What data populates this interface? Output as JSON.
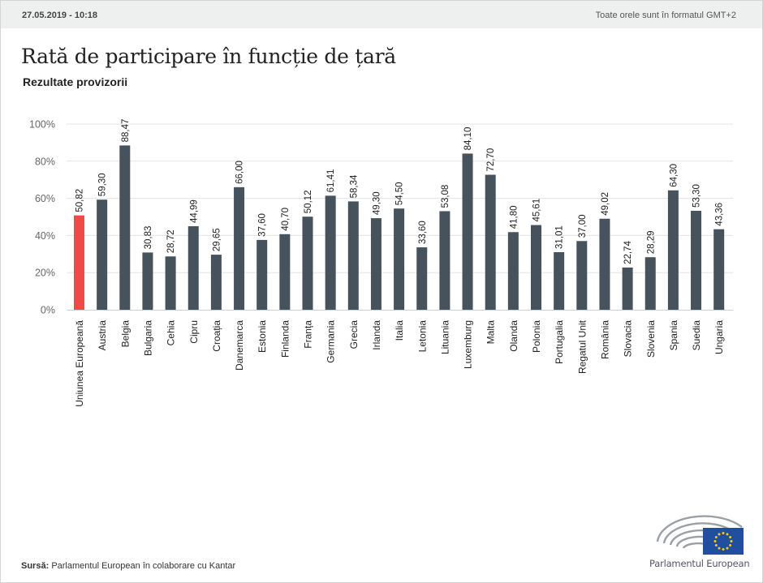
{
  "header": {
    "timestamp": "27.05.2019 - 10:18",
    "timezone_note": "Toate orele sunt în formatul GMT+2"
  },
  "footer": {
    "source_label": "Sursă:",
    "source_text": "Parlamentul European în colaborare cu Kantar",
    "logo_text": "Parlamentul European"
  },
  "colors": {
    "highlight": "#f04a47",
    "bar": "#46525c",
    "grid": "#e3e3e3",
    "axis_text": "#666666",
    "eu_blue": "#1f4f9e",
    "eu_star": "#ffcc00"
  },
  "chart_data": {
    "type": "bar",
    "title": "Rată de participare în funcție de țară",
    "subtitle": "Rezultate provizorii",
    "xlabel": "",
    "ylabel": "",
    "ylim": [
      0,
      100
    ],
    "yticks": [
      "0%",
      "20%",
      "40%",
      "60%",
      "80%",
      "100%"
    ],
    "ytick_values": [
      0,
      20,
      40,
      60,
      80,
      100
    ],
    "grid": true,
    "legend": "none",
    "highlight_index": 0,
    "categories": [
      "Uniunea Europeană",
      "Austria",
      "Belgia",
      "Bulgaria",
      "Cehia",
      "Cipru",
      "Croația",
      "Danemarca",
      "Estonia",
      "Finlanda",
      "Franța",
      "Germania",
      "Grecia",
      "Irlanda",
      "Italia",
      "Letonia",
      "Lituania",
      "Luxemburg",
      "Malta",
      "Olanda",
      "Polonia",
      "Portugalia",
      "Regatul Unit",
      "România",
      "Slovacia",
      "Slovenia",
      "Spania",
      "Suedia",
      "Ungaria"
    ],
    "values": [
      50.82,
      59.3,
      88.47,
      30.83,
      28.72,
      44.99,
      29.65,
      66.0,
      37.6,
      40.7,
      50.12,
      61.41,
      58.34,
      49.3,
      54.5,
      33.6,
      53.08,
      84.1,
      72.7,
      41.8,
      45.61,
      31.01,
      37.0,
      49.02,
      22.74,
      28.29,
      64.3,
      53.3,
      43.36
    ],
    "value_labels": [
      "50,82",
      "59,30",
      "88,47",
      "30,83",
      "28,72",
      "44,99",
      "29,65",
      "66,00",
      "37,60",
      "40,70",
      "50,12",
      "61,41",
      "58,34",
      "49,30",
      "54,50",
      "33,60",
      "53,08",
      "84,10",
      "72,70",
      "41,80",
      "45,61",
      "31,01",
      "37,00",
      "49,02",
      "22,74",
      "28,29",
      "64,30",
      "53,30",
      "43,36"
    ]
  }
}
